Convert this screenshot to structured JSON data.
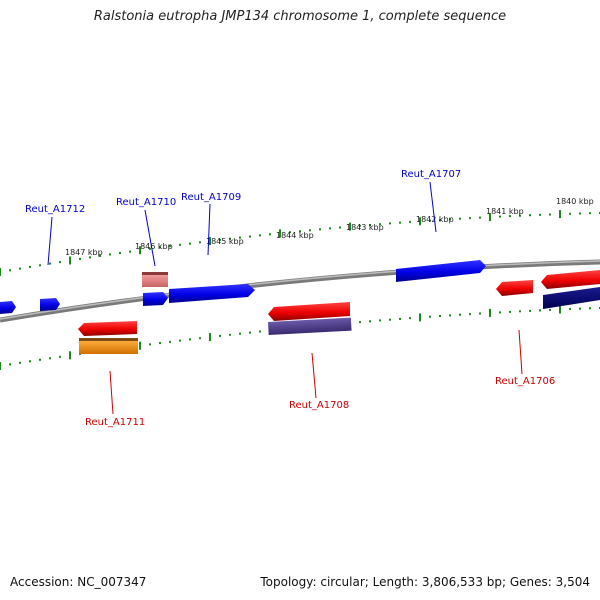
{
  "title": "Ralstonia eutropha JMP134 chromosome 1, complete sequence",
  "footer": {
    "accession": "Accession: NC_007347",
    "summary": "Topology: circular; Length: 3,806,533 bp; Genes: 3,504"
  },
  "colors": {
    "backbone": "#8a8a8a",
    "tick": "#1a8a1a",
    "label_top": "#0000cc",
    "label_bottom": "#cc0000"
  },
  "scale_labels": [
    "1847 kbp",
    "1846 kbp",
    "1845 kbp",
    "1844 kbp",
    "1843 kbp",
    "1842 kbp",
    "1841 kbp",
    "1840 kbp"
  ],
  "gene_labels": {
    "top": [
      "Reut_A1712",
      "Reut_A1710",
      "Reut_A1709",
      "Reut_A1707"
    ],
    "bottom": [
      "Reut_A1711",
      "Reut_A1708",
      "Reut_A1706"
    ]
  }
}
